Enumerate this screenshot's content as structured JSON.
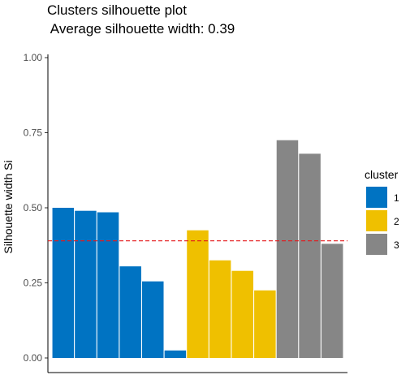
{
  "chart_data": {
    "type": "bar",
    "title": "Clusters silhouette plot",
    "subtitle": " Average silhouette width: 0.39",
    "xlabel": "",
    "ylabel": "Silhouette width Si",
    "ylim": [
      0,
      1.0
    ],
    "yticks": [
      "0.00",
      "0.25",
      "0.50",
      "0.75",
      "1.00"
    ],
    "grid": false,
    "reference_line": {
      "value": 0.39,
      "style": "dashed",
      "color": "#e41a1c"
    },
    "legend": {
      "title": "cluster",
      "position": "right"
    },
    "series": [
      {
        "name": "1",
        "color": "#0073C2",
        "values": [
          0.5,
          0.49,
          0.485,
          0.305,
          0.255,
          0.025
        ]
      },
      {
        "name": "2",
        "color": "#EFC000",
        "values": [
          0.425,
          0.325,
          0.29,
          0.225
        ]
      },
      {
        "name": "3",
        "color": "#868686",
        "values": [
          0.725,
          0.68,
          0.38
        ]
      }
    ]
  }
}
